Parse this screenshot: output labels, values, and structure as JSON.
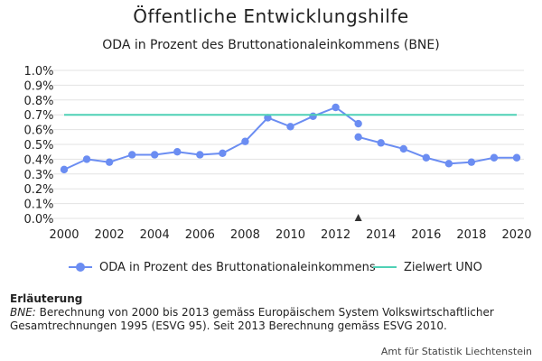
{
  "title": "Öffentliche Entwicklungshilfe",
  "subtitle": "ODA in Prozent des Bruttonationaleinkommens (BNE)",
  "colors": {
    "oda": "#6b8df2",
    "target": "#4fd1b5",
    "marker": "#333333",
    "grid": "#e3e3e3"
  },
  "legend": {
    "oda_label": "ODA in Prozent des Bruttonationaleinkommens",
    "target_label": "Zielwert UNO"
  },
  "note": {
    "title": "Erläuterung",
    "term": "BNE:",
    "text": " Berechnung von 2000 bis 2013 gemäss Europäischem System Volkswirtschaftlicher Gesamtrechnungen 1995 (ESVG 95). Seit 2013 Berechnung gemäss ESVG 2010."
  },
  "source": "Amt für Statistik Liechtenstein",
  "chart_data": {
    "type": "line",
    "x_ticks": [
      "2000",
      "2002",
      "2004",
      "2006",
      "2008",
      "2010",
      "2012",
      "2014",
      "2016",
      "2018",
      "2020"
    ],
    "y_ticks": [
      "0.0%",
      "0.1%",
      "0.2%",
      "0.3%",
      "0.4%",
      "0.5%",
      "0.6%",
      "0.7%",
      "0.8%",
      "0.9%",
      "1.0%"
    ],
    "xlim": [
      2000,
      2020
    ],
    "ylim": [
      0,
      1.0
    ],
    "grid": "horizontal",
    "legend_position": "bottom",
    "series": [
      {
        "name": "ODA in Prozent des Bruttonationaleinkommens",
        "style": "line-markers",
        "x": [
          2000,
          2001,
          2002,
          2003,
          2004,
          2005,
          2006,
          2007,
          2008,
          2009,
          2010,
          2011,
          2012,
          2013
        ],
        "y": [
          0.33,
          0.4,
          0.38,
          0.43,
          0.43,
          0.45,
          0.43,
          0.44,
          0.52,
          0.68,
          0.62,
          0.69,
          0.75,
          0.64
        ]
      },
      {
        "name": "ODA in Prozent des Bruttonationaleinkommens",
        "style": "line-markers",
        "x": [
          2013,
          2014,
          2015,
          2016,
          2017,
          2018,
          2019,
          2020
        ],
        "y": [
          0.55,
          0.51,
          0.47,
          0.41,
          0.37,
          0.38,
          0.41,
          0.41
        ]
      },
      {
        "name": "Zielwert UNO",
        "style": "line",
        "x": [
          2000,
          2020
        ],
        "y": [
          0.7,
          0.7
        ]
      }
    ],
    "annotations": [
      {
        "type": "marker-triangle",
        "x": 2013,
        "y": 0
      }
    ]
  }
}
